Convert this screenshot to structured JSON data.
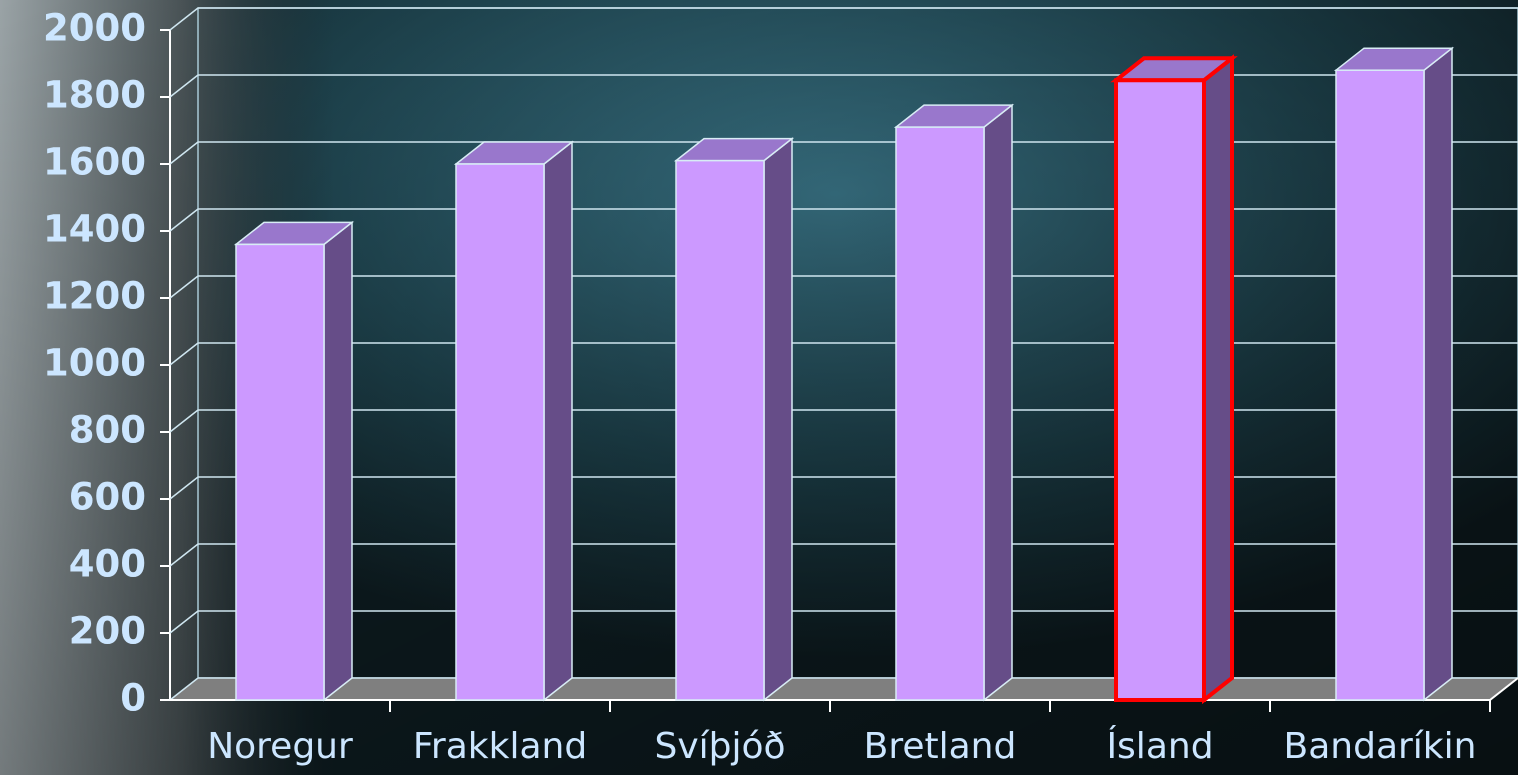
{
  "chart_data": {
    "type": "bar3d",
    "categories": [
      "Noregur",
      "Frakkland",
      "Svíþjóð",
      "Bretland",
      "Ísland",
      "Bandaríkin"
    ],
    "values": [
      1360,
      1600,
      1610,
      1710,
      1850,
      1880
    ],
    "color": "#cc99ff",
    "side_color": "#664d88",
    "top_color": "#9977cc",
    "highlight_index": 4,
    "highlight_color": "#ff0000",
    "ylim": [
      0,
      2000
    ],
    "yticks": [
      0,
      200,
      400,
      600,
      800,
      1000,
      1200,
      1400,
      1600,
      1800,
      2000
    ],
    "grid": true
  }
}
